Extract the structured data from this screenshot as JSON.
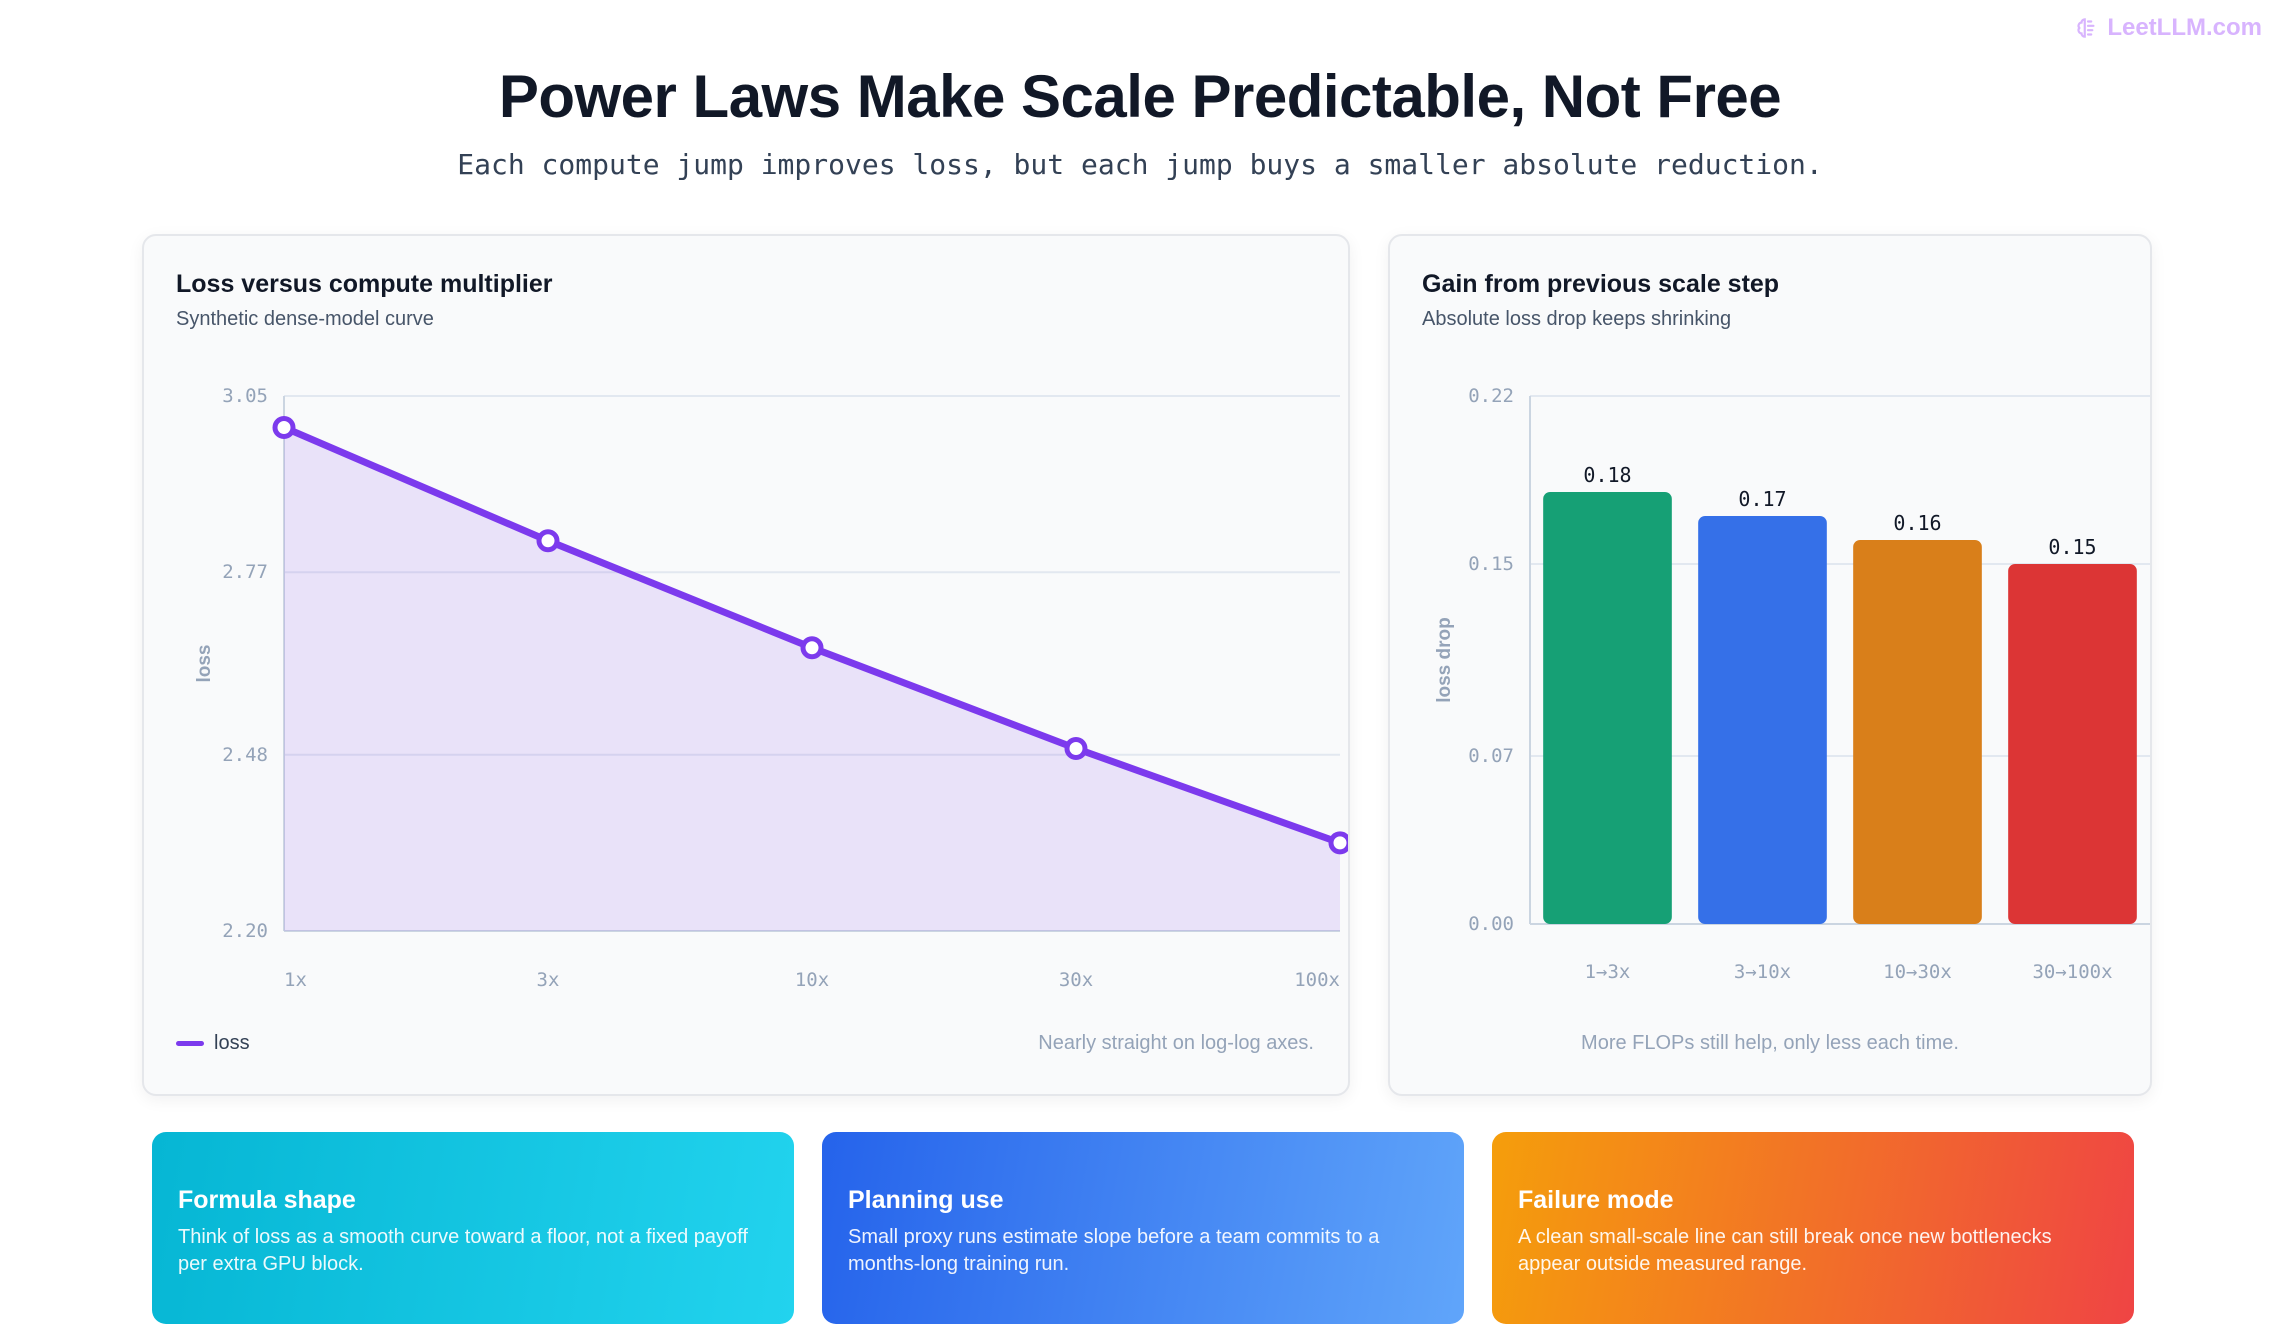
{
  "brand": {
    "text": "LeetLLM.com",
    "icon": "brain-icon",
    "color": "#d8b4fe"
  },
  "header": {
    "title": "Power Laws Make Scale Predictable, Not Free",
    "subtitle": "Each compute jump improves loss, but each jump buys a smaller absolute reduction."
  },
  "chart_data": [
    {
      "type": "line",
      "title": "Loss versus compute multiplier",
      "subtitle": "Synthetic dense-model curve",
      "x": [
        "1x",
        "3x",
        "10x",
        "30x",
        "100x"
      ],
      "series": [
        {
          "name": "loss",
          "values": [
            3.0,
            2.82,
            2.65,
            2.49,
            2.34
          ],
          "color": "#7c3aed"
        }
      ],
      "ylabel": "loss",
      "xlabel": "",
      "ylim": [
        2.2,
        3.05
      ],
      "yticks": [
        "3.05",
        "2.77",
        "2.48",
        "2.20"
      ],
      "fill": true,
      "grid": true,
      "legend": "bottom-left",
      "note": "Nearly straight on log-log axes."
    },
    {
      "type": "bar",
      "title": "Gain from previous scale step",
      "subtitle": "Absolute loss drop keeps shrinking",
      "categories": [
        "1→3x",
        "3→10x",
        "10→30x",
        "30→100x"
      ],
      "values": [
        0.18,
        0.17,
        0.16,
        0.15
      ],
      "value_labels": [
        "0.18",
        "0.17",
        "0.16",
        "0.15"
      ],
      "colors": [
        "#16a075",
        "#3570e8",
        "#d97f1a",
        "#dc3535"
      ],
      "ylabel": "loss drop",
      "xlabel": "",
      "ylim": [
        0,
        0.22
      ],
      "yticks": [
        "0.22",
        "0.15",
        "0.07",
        "0.00"
      ],
      "grid": true,
      "note": "More FLOPs still help, only less each time."
    }
  ],
  "cards": [
    {
      "title": "Formula shape",
      "body": "Think of loss as a smooth curve toward a floor, not a fixed payoff per extra GPU block."
    },
    {
      "title": "Planning use",
      "body": "Small proxy runs estimate slope before a team commits to a months-long training run."
    },
    {
      "title": "Failure mode",
      "body": "A clean small-scale line can still break once new bottlenecks appear outside measured range."
    }
  ]
}
